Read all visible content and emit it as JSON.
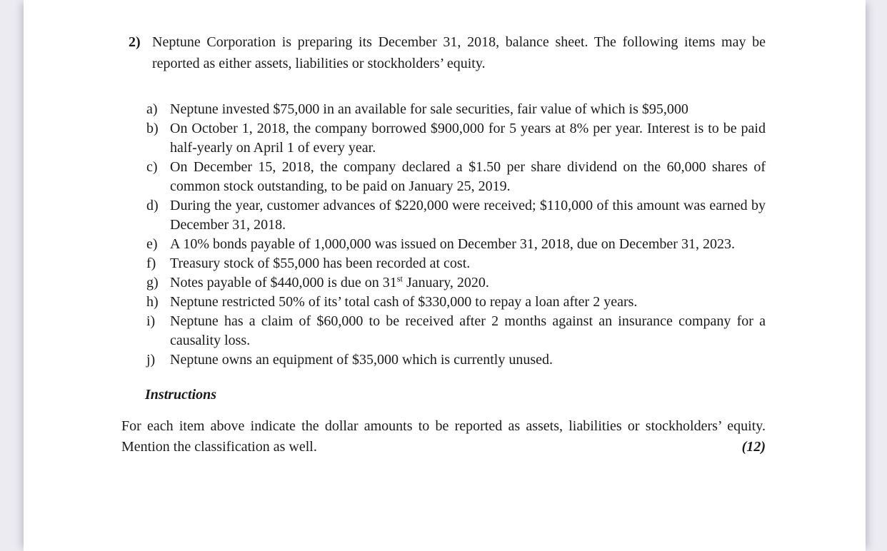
{
  "page": {
    "background_color": "#ecebf1",
    "paper_color": "#ffffff",
    "text_color": "#1b1b1b"
  },
  "question": {
    "number": "2)",
    "intro": "Neptune Corporation is preparing its December 31, 2018, balance sheet. The following items may be reported as either assets, liabilities or stockholders’ equity.",
    "items": [
      {
        "letter": "a)",
        "parts": [
          {
            "text": "Neptune invested $75,000 in an available for sale securities, fair value of which is $95,000"
          }
        ]
      },
      {
        "letter": "b)",
        "parts": [
          {
            "text": "On October 1, 2018, the company borrowed $900,000 for 5 years at 8% per year. Interest is to be paid half-yearly on April 1 of every year."
          }
        ]
      },
      {
        "letter": "c)",
        "parts": [
          {
            "text": "On December 15, 2018, the company declared a $1.50 per share dividend on the 60,000 shares of common stock outstanding, to be paid on January 25, 2019."
          }
        ]
      },
      {
        "letter": "d)",
        "parts": [
          {
            "text": "During the year, customer advances of $220,000 were received; $110,000 of this amount was earned by December 31, 2018."
          }
        ]
      },
      {
        "letter": "e)",
        "parts": [
          {
            "text": "A 10% bonds payable of 1,000,000 was issued on December 31, 2018, due on December 31, 2023."
          }
        ]
      },
      {
        "letter": "f)",
        "parts": [
          {
            "text": "Treasury stock of $55,000 has been recorded at cost."
          }
        ]
      },
      {
        "letter": "g)",
        "parts": [
          {
            "text": "Notes payable of $440,000 is due on 31"
          },
          {
            "text": "st",
            "sup": true
          },
          {
            "text": " January, 2020."
          }
        ]
      },
      {
        "letter": "h)",
        "parts": [
          {
            "text": "Neptune restricted 50% of its’ total cash of $330,000 to repay a loan after 2 years."
          }
        ]
      },
      {
        "letter": "i)",
        "parts": [
          {
            "text": "Neptune has a claim of $60,000 to be received after 2 months against an insurance company for a causality loss."
          }
        ]
      },
      {
        "letter": "j)",
        "parts": [
          {
            "text": "Neptune owns an equipment of $35,000 which is currently unused."
          }
        ]
      }
    ],
    "instructions_heading": "Instructions",
    "closing_text": "For each item above indicate the dollar amounts to be reported as assets, liabilities or stockholders’ equity. Mention the classification as well.",
    "marks": "(12)"
  }
}
